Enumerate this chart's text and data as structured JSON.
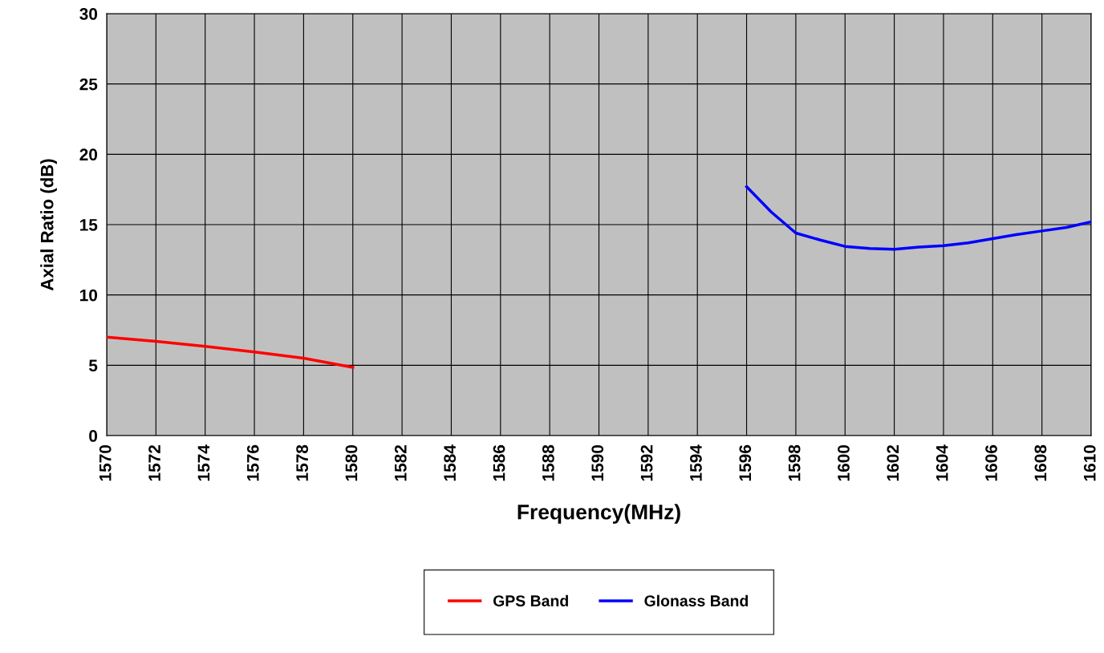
{
  "chart_data": {
    "type": "line",
    "xlabel": "Frequency(MHz)",
    "ylabel": "Axial Ratio (dB)",
    "xlim": [
      1570,
      1610
    ],
    "xticks": [
      1570,
      1572,
      1574,
      1576,
      1578,
      1580,
      1582,
      1584,
      1586,
      1588,
      1590,
      1592,
      1594,
      1596,
      1598,
      1600,
      1602,
      1604,
      1606,
      1608,
      1610
    ],
    "ylim": [
      0,
      30
    ],
    "yticks": [
      0,
      5,
      10,
      15,
      20,
      25,
      30
    ],
    "grid": true,
    "legend": "bottom",
    "marker": "none",
    "line_style": "solid",
    "series": [
      {
        "name": "GPS Band",
        "color": "#ff0000",
        "x": [
          1570,
          1572,
          1574,
          1576,
          1578,
          1580
        ],
        "values": [
          7.0,
          6.7,
          6.35,
          5.95,
          5.5,
          4.85
        ]
      },
      {
        "name": "Glonass Band",
        "color": "#0000ff",
        "x": [
          1596,
          1597,
          1598,
          1599,
          1600,
          1601,
          1602,
          1603,
          1604,
          1605,
          1606,
          1607,
          1608,
          1609,
          1610
        ],
        "values": [
          17.7,
          15.9,
          14.4,
          13.9,
          13.45,
          13.3,
          13.25,
          13.4,
          13.5,
          13.7,
          14.0,
          14.3,
          14.55,
          14.8,
          15.2
        ]
      }
    ]
  }
}
